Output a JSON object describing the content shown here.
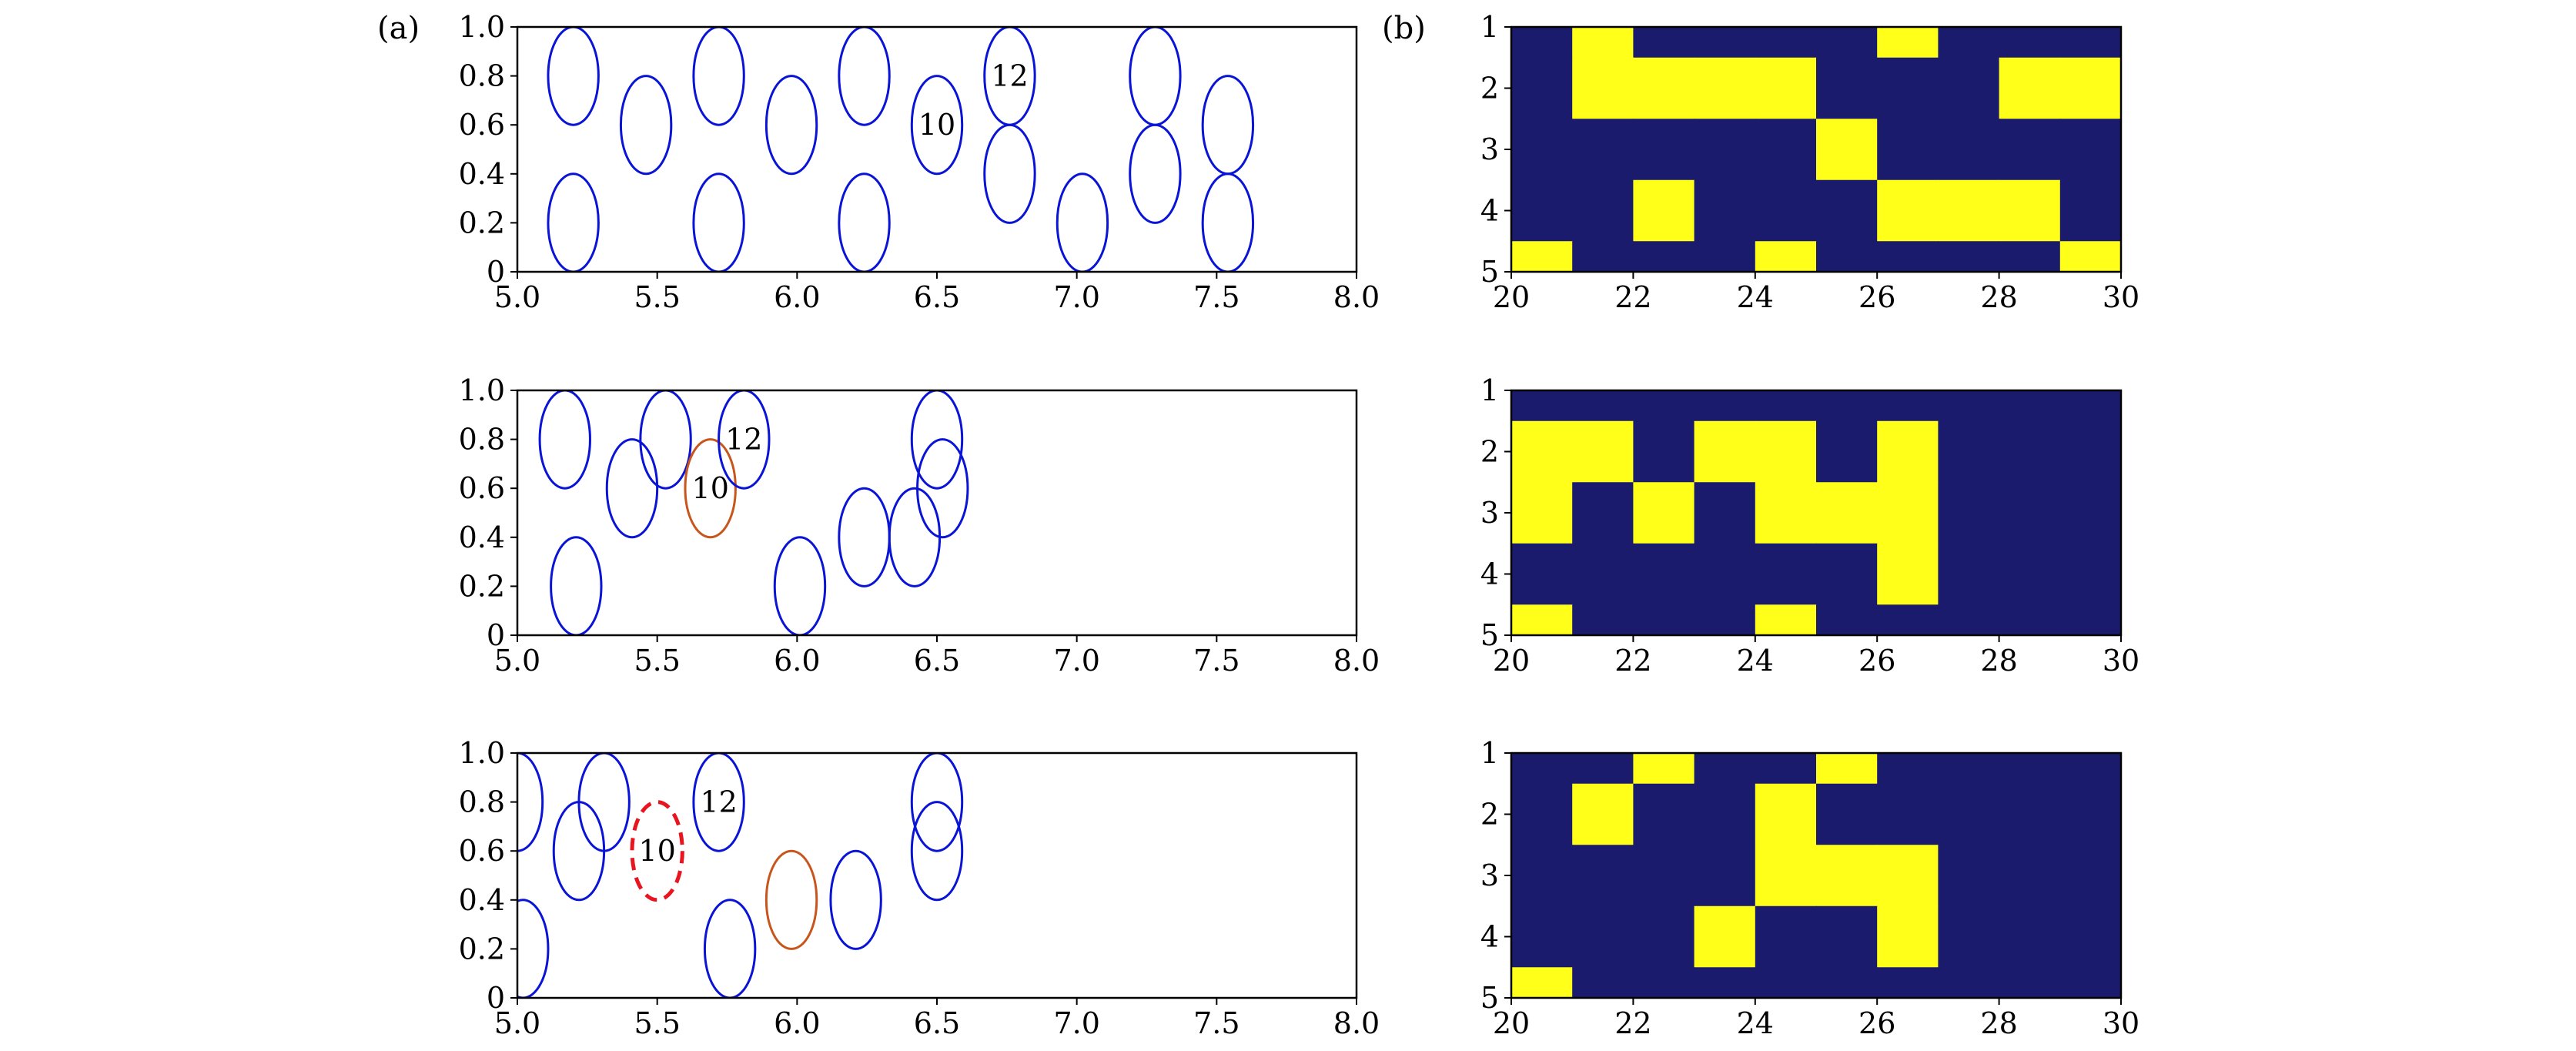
{
  "figure": {
    "panel_labels": [
      "(a)",
      "(b)"
    ]
  },
  "chart_data": [
    {
      "type": "scatter",
      "panel": "a",
      "row": 1,
      "xlim": [
        5.0,
        8.0
      ],
      "ylim": [
        0,
        1.0
      ],
      "xticks": [
        "5.0",
        "5.5",
        "6.0",
        "6.5",
        "7.0",
        "7.5",
        "8.0"
      ],
      "yticks": [
        "0",
        "0.2",
        "0.4",
        "0.6",
        "0.8",
        "1.0"
      ],
      "ellipse_radius": {
        "x": 0.09,
        "y": 0.2
      },
      "ellipses": [
        {
          "x": 5.2,
          "y": 0.8,
          "style": "blue"
        },
        {
          "x": 5.2,
          "y": 0.2,
          "style": "blue"
        },
        {
          "x": 5.46,
          "y": 0.6,
          "style": "blue"
        },
        {
          "x": 5.72,
          "y": 0.8,
          "style": "blue"
        },
        {
          "x": 5.72,
          "y": 0.2,
          "style": "blue"
        },
        {
          "x": 5.98,
          "y": 0.6,
          "style": "blue"
        },
        {
          "x": 6.24,
          "y": 0.8,
          "style": "blue"
        },
        {
          "x": 6.24,
          "y": 0.2,
          "style": "blue"
        },
        {
          "x": 6.5,
          "y": 0.6,
          "style": "blue",
          "label": "10"
        },
        {
          "x": 6.76,
          "y": 0.8,
          "style": "blue",
          "label": "12"
        },
        {
          "x": 6.76,
          "y": 0.4,
          "style": "blue"
        },
        {
          "x": 7.02,
          "y": 0.2,
          "style": "blue"
        },
        {
          "x": 7.28,
          "y": 0.8,
          "style": "blue"
        },
        {
          "x": 7.28,
          "y": 0.4,
          "style": "blue"
        },
        {
          "x": 7.54,
          "y": 0.6,
          "style": "blue"
        },
        {
          "x": 7.54,
          "y": 0.2,
          "style": "blue"
        }
      ]
    },
    {
      "type": "heatmap",
      "panel": "b",
      "row": 1,
      "xlim": [
        20,
        30
      ],
      "xticks": [
        "20",
        "22",
        "24",
        "26",
        "28",
        "30"
      ],
      "yticks": [
        "1",
        "2",
        "3",
        "4",
        "5"
      ],
      "row_origin": 0.5,
      "x_start": 20,
      "colors": {
        "off": "#1b1b6e",
        "on": "#ffff1a"
      },
      "rows": [
        [
          0,
          1,
          1,
          1,
          1,
          1,
          1,
          1,
          1,
          1,
          1,
          1,
          1,
          1,
          1,
          1,
          1,
          1,
          1,
          1
        ],
        [
          0,
          1,
          1,
          1,
          1,
          1,
          1,
          1,
          1,
          1,
          1,
          1,
          1,
          1,
          1,
          1,
          1,
          1,
          1,
          1
        ],
        [
          0,
          1,
          1,
          1,
          1,
          1,
          1,
          1,
          1,
          1,
          1,
          1,
          1,
          1,
          1,
          1,
          1,
          1,
          1,
          1
        ],
        [
          0,
          1,
          1,
          1,
          1,
          1,
          1,
          1,
          1,
          1,
          1,
          1,
          1,
          1,
          1,
          1,
          1,
          1,
          1,
          1
        ],
        [
          0,
          1,
          1,
          1,
          1,
          1,
          1,
          1,
          1,
          1,
          1,
          1,
          1,
          1,
          1,
          1,
          1,
          1,
          1,
          1
        ]
      ],
      "cells": [
        [
          0,
          1,
          0,
          0,
          0,
          0,
          1,
          0,
          0,
          0
        ],
        [
          0,
          1,
          1,
          1,
          1,
          0,
          0,
          0,
          1,
          1
        ],
        [
          0,
          1,
          1,
          1,
          1,
          0,
          0,
          0,
          1,
          1
        ],
        [
          0,
          0,
          0,
          0,
          0,
          1,
          0,
          0,
          0,
          0
        ],
        [
          0,
          0,
          0,
          0,
          0,
          1,
          0,
          0,
          0,
          0
        ],
        [
          0,
          0,
          1,
          0,
          0,
          0,
          1,
          1,
          1,
          0
        ],
        [
          0,
          0,
          1,
          0,
          0,
          0,
          1,
          1,
          1,
          0
        ],
        [
          1,
          0,
          0,
          0,
          1,
          0,
          0,
          0,
          0,
          1
        ]
      ]
    },
    {
      "type": "scatter",
      "panel": "a",
      "row": 2,
      "xlim": [
        5.0,
        8.0
      ],
      "ylim": [
        0,
        1.0
      ],
      "xticks": [
        "5.0",
        "5.5",
        "6.0",
        "6.5",
        "7.0",
        "7.5",
        "8.0"
      ],
      "yticks": [
        "0",
        "0.2",
        "0.4",
        "0.6",
        "0.8",
        "1.0"
      ],
      "ellipse_radius": {
        "x": 0.09,
        "y": 0.2
      },
      "ellipses": [
        {
          "x": 5.17,
          "y": 0.8,
          "style": "blue"
        },
        {
          "x": 5.21,
          "y": 0.2,
          "style": "blue"
        },
        {
          "x": 5.41,
          "y": 0.6,
          "style": "blue"
        },
        {
          "x": 5.53,
          "y": 0.8,
          "style": "blue"
        },
        {
          "x": 5.69,
          "y": 0.6,
          "style": "orange",
          "label": "10"
        },
        {
          "x": 5.81,
          "y": 0.8,
          "style": "blue",
          "label": "12"
        },
        {
          "x": 6.01,
          "y": 0.2,
          "style": "blue"
        },
        {
          "x": 6.24,
          "y": 0.4,
          "style": "blue"
        },
        {
          "x": 6.42,
          "y": 0.4,
          "style": "blue"
        },
        {
          "x": 6.5,
          "y": 0.8,
          "style": "blue"
        },
        {
          "x": 6.52,
          "y": 0.6,
          "style": "blue"
        }
      ]
    },
    {
      "type": "heatmap",
      "panel": "b",
      "row": 2,
      "xlim": [
        20,
        30
      ],
      "xticks": [
        "20",
        "22",
        "24",
        "26",
        "28",
        "30"
      ],
      "yticks": [
        "1",
        "2",
        "3",
        "4",
        "5"
      ],
      "x_start": 20,
      "colors": {
        "off": "#1b1b6e",
        "on": "#ffff1a"
      },
      "cells": [
        [
          0,
          0,
          0,
          0,
          0,
          0,
          0,
          0,
          0,
          0
        ],
        [
          1,
          1,
          0,
          1,
          1,
          0,
          1,
          0,
          0,
          0
        ],
        [
          1,
          1,
          0,
          1,
          1,
          0,
          1,
          0,
          0,
          0
        ],
        [
          1,
          0,
          1,
          0,
          1,
          1,
          1,
          0,
          0,
          0
        ],
        [
          1,
          0,
          1,
          0,
          1,
          1,
          1,
          0,
          0,
          0
        ],
        [
          0,
          0,
          0,
          0,
          0,
          0,
          1,
          0,
          0,
          0
        ],
        [
          0,
          0,
          0,
          0,
          0,
          0,
          1,
          0,
          0,
          0
        ],
        [
          1,
          0,
          0,
          0,
          1,
          0,
          0,
          0,
          0,
          0
        ]
      ]
    },
    {
      "type": "scatter",
      "panel": "a",
      "row": 3,
      "xlim": [
        5.0,
        8.0
      ],
      "ylim": [
        0,
        1.0
      ],
      "xticks": [
        "5.0",
        "5.5",
        "6.0",
        "6.5",
        "7.0",
        "7.5",
        "8.0"
      ],
      "yticks": [
        "0",
        "0.2",
        "0.4",
        "0.6",
        "0.8",
        "1.0"
      ],
      "ellipse_radius": {
        "x": 0.09,
        "y": 0.2
      },
      "ellipses": [
        {
          "x": 5.0,
          "y": 0.8,
          "style": "blue"
        },
        {
          "x": 5.02,
          "y": 0.2,
          "style": "blue"
        },
        {
          "x": 5.22,
          "y": 0.6,
          "style": "blue"
        },
        {
          "x": 5.31,
          "y": 0.8,
          "style": "blue"
        },
        {
          "x": 5.5,
          "y": 0.6,
          "style": "red-dashed",
          "label": "10"
        },
        {
          "x": 5.72,
          "y": 0.8,
          "style": "blue",
          "label": "12"
        },
        {
          "x": 5.76,
          "y": 0.2,
          "style": "blue"
        },
        {
          "x": 5.98,
          "y": 0.4,
          "style": "orange"
        },
        {
          "x": 6.21,
          "y": 0.4,
          "style": "blue"
        },
        {
          "x": 6.5,
          "y": 0.8,
          "style": "blue"
        },
        {
          "x": 6.5,
          "y": 0.6,
          "style": "blue"
        }
      ]
    },
    {
      "type": "heatmap",
      "panel": "b",
      "row": 3,
      "xlim": [
        20,
        30
      ],
      "xticks": [
        "20",
        "22",
        "24",
        "26",
        "28",
        "30"
      ],
      "yticks": [
        "1",
        "2",
        "3",
        "4",
        "5"
      ],
      "x_start": 20,
      "colors": {
        "off": "#1b1b6e",
        "on": "#ffff1a"
      },
      "cells": [
        [
          0,
          0,
          1,
          0,
          0,
          1,
          0,
          0,
          0,
          0
        ],
        [
          0,
          1,
          0,
          0,
          1,
          0,
          0,
          0,
          0,
          0
        ],
        [
          0,
          1,
          0,
          0,
          1,
          0,
          0,
          0,
          0,
          0
        ],
        [
          0,
          0,
          0,
          0,
          1,
          1,
          1,
          0,
          0,
          0
        ],
        [
          0,
          0,
          0,
          0,
          1,
          1,
          1,
          0,
          0,
          0
        ],
        [
          0,
          0,
          0,
          1,
          0,
          0,
          1,
          0,
          0,
          0
        ],
        [
          0,
          0,
          0,
          1,
          0,
          0,
          1,
          0,
          0,
          0
        ],
        [
          1,
          0,
          0,
          0,
          0,
          0,
          0,
          0,
          0,
          0
        ]
      ]
    }
  ]
}
